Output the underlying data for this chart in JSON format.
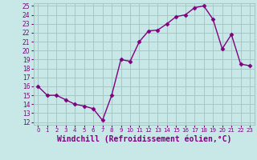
{
  "x": [
    0,
    1,
    2,
    3,
    4,
    5,
    6,
    7,
    8,
    9,
    10,
    11,
    12,
    13,
    14,
    15,
    16,
    17,
    18,
    19,
    20,
    21,
    22,
    23
  ],
  "y": [
    16,
    15,
    15,
    14.5,
    14,
    13.8,
    13.5,
    12.2,
    15,
    19,
    18.8,
    21,
    22.2,
    22.3,
    23,
    23.8,
    24,
    24.8,
    25,
    23.5,
    20.2,
    21.8,
    18.5,
    18.3
  ],
  "line_color": "#800080",
  "marker": "D",
  "marker_size": 2.5,
  "background_color": "#c8e8e8",
  "grid_color": "#a8c8c8",
  "xlabel": "Windchill (Refroidissement éolien,°C)",
  "xlabel_fontsize": 7,
  "ytick_min": 12,
  "ytick_max": 25,
  "ytick_step": 1,
  "xtick_labels": [
    "0",
    "1",
    "2",
    "3",
    "4",
    "5",
    "6",
    "7",
    "8",
    "9",
    "10",
    "11",
    "12",
    "13",
    "14",
    "15",
    "16",
    "17",
    "18",
    "19",
    "20",
    "21",
    "22",
    "23"
  ],
  "line_width": 1.0
}
